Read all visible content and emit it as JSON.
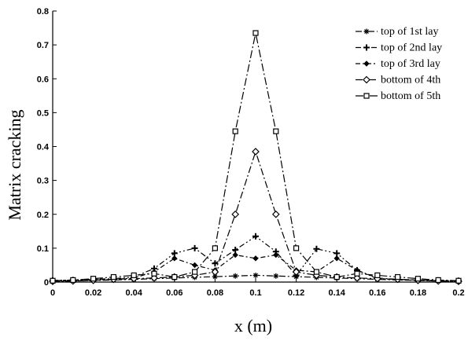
{
  "chart_data": {
    "type": "line",
    "xlabel": "x (m)",
    "ylabel": "Matrix cracking",
    "xlim": [
      0,
      0.2
    ],
    "ylim": [
      0,
      0.8
    ],
    "x_ticks": [
      "0",
      "0.02",
      "0.04",
      "0.06",
      "0.08",
      "0.1",
      "0.12",
      "0.14",
      "0.16",
      "0.18",
      "0.2"
    ],
    "y_ticks": [
      "0",
      "0.1",
      "0.2",
      "0.3",
      "0.4",
      "0.5",
      "0.6",
      "0.7",
      "0.8"
    ],
    "grid": false,
    "legend_position": "top-right",
    "x": [
      0,
      0.01,
      0.02,
      0.03,
      0.04,
      0.05,
      0.06,
      0.07,
      0.08,
      0.09,
      0.1,
      0.11,
      0.12,
      0.13,
      0.14,
      0.15,
      0.16,
      0.17,
      0.18,
      0.19,
      0.2
    ],
    "series": [
      {
        "name": "top of 1st lay",
        "marker": "star",
        "values": [
          0.002,
          0.003,
          0.005,
          0.006,
          0.008,
          0.01,
          0.012,
          0.014,
          0.016,
          0.018,
          0.02,
          0.018,
          0.016,
          0.014,
          0.012,
          0.01,
          0.008,
          0.006,
          0.005,
          0.003,
          0.002
        ]
      },
      {
        "name": "top of 2nd lay",
        "marker": "plus",
        "values": [
          0.005,
          0.006,
          0.008,
          0.01,
          0.015,
          0.04,
          0.085,
          0.1,
          0.055,
          0.095,
          0.135,
          0.09,
          0.02,
          0.098,
          0.085,
          0.035,
          0.01,
          0.008,
          0.006,
          0.005,
          0.004
        ]
      },
      {
        "name": "top of 3rd lay",
        "marker": "diamond-small",
        "values": [
          0.003,
          0.004,
          0.006,
          0.008,
          0.012,
          0.03,
          0.07,
          0.05,
          0.035,
          0.08,
          0.07,
          0.08,
          0.035,
          0.03,
          0.07,
          0.035,
          0.012,
          0.008,
          0.006,
          0.004,
          0.003
        ]
      },
      {
        "name": "bottom of 4th",
        "marker": "diamond",
        "values": [
          0.002,
          0.003,
          0.005,
          0.008,
          0.01,
          0.012,
          0.015,
          0.02,
          0.03,
          0.2,
          0.385,
          0.2,
          0.03,
          0.02,
          0.015,
          0.012,
          0.01,
          0.008,
          0.005,
          0.003,
          0.002
        ]
      },
      {
        "name": "bottom of 5th",
        "marker": "square",
        "values": [
          0.004,
          0.006,
          0.01,
          0.015,
          0.02,
          0.025,
          0.015,
          0.03,
          0.1,
          0.445,
          0.735,
          0.445,
          0.1,
          0.03,
          0.015,
          0.025,
          0.02,
          0.015,
          0.01,
          0.006,
          0.004
        ]
      }
    ]
  }
}
